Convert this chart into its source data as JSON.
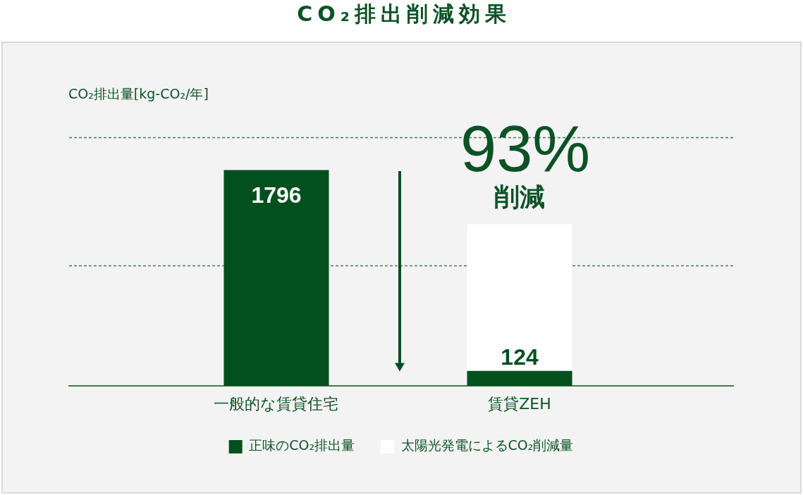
{
  "chart_data": {
    "type": "bar",
    "title": "CO₂排出削減効果",
    "categories": [
      "一般的な賃貸住宅",
      "賃貸ZEH"
    ],
    "series": [
      {
        "name": "正味のCO₂排出量",
        "color": "#03501f",
        "values": [
          1796,
          124
        ],
        "value_labels": [
          "1796",
          "124"
        ]
      },
      {
        "name": "太陽光発電によるCO₂削減量",
        "color": "#ffffff",
        "values": [
          null,
          1220
        ]
      }
    ],
    "stacked": true,
    "ref_lines": [
      {
        "axis": "y",
        "value": 1000,
        "color": "#3f7d58",
        "line_style": "dotted"
      },
      {
        "axis": "y",
        "value": 2070,
        "color": "#3f7d58",
        "line_style": "dotted"
      }
    ],
    "tick_labels": "x",
    "legend": "bottom",
    "annotations": [
      "CO₂排出量[kg-CO₂/年]",
      "93%",
      "削減"
    ]
  }
}
